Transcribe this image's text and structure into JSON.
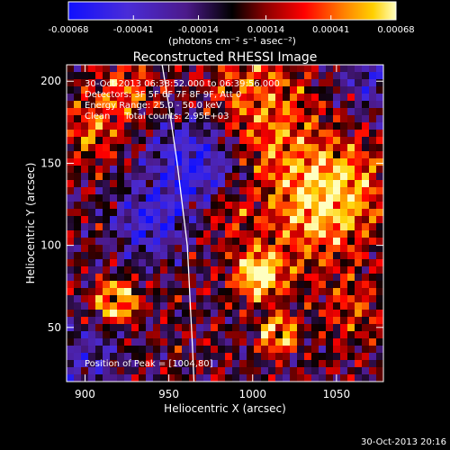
{
  "chart_data": {
    "type": "heatmap",
    "title": "Reconstructed RHESSI Image",
    "xlabel": "Heliocentric X (arcsec)",
    "ylabel": "Heliocentric Y (arcsec)",
    "xlim": [
      889,
      1078
    ],
    "ylim": [
      17,
      210
    ],
    "x_ticks": [
      900,
      950,
      1000,
      1050
    ],
    "y_ticks": [
      50,
      100,
      150,
      200
    ],
    "colorbar": {
      "range": [
        -0.00068,
        0.00068
      ],
      "tick_values": [
        -0.00068,
        -0.00041,
        -0.00014,
        0.00014,
        0.00041,
        0.00068
      ],
      "tick_labels": [
        "-0.00068",
        "-0.00041",
        "-0.00014",
        "0.00014",
        "0.00041",
        "0.00068"
      ],
      "unit_label": "(photons cm⁻² s⁻¹ asec⁻²)"
    },
    "annotations": [
      "30-Oct-2013 06:38:52.000 to 06:39:56.000",
      "Detectors: 3F 5F 6F 7F 8F 9F, Att 0",
      "Energy Range: 25.0 - 50.0 keV",
      "Clean     Total counts: 2.95E+03"
    ],
    "peak_label": "Position of Peak = [1004,80]",
    "peak": {
      "x": 1004,
      "y": 80
    },
    "limb": [
      [
        946,
        210
      ],
      [
        950,
        185
      ],
      [
        955,
        150
      ],
      [
        958,
        125
      ],
      [
        961,
        100
      ],
      [
        962,
        80
      ],
      [
        963,
        60
      ],
      [
        964,
        40
      ],
      [
        965,
        17
      ]
    ],
    "colors": {
      "negative": "#1414ff",
      "zero": "#000000",
      "positive_low": "#ff0000",
      "positive_high": "#ffffb0",
      "background": "#000000",
      "limb": "#ffffff"
    }
  },
  "footer": {
    "timestamp": "30-Oct-2013 20:16"
  }
}
